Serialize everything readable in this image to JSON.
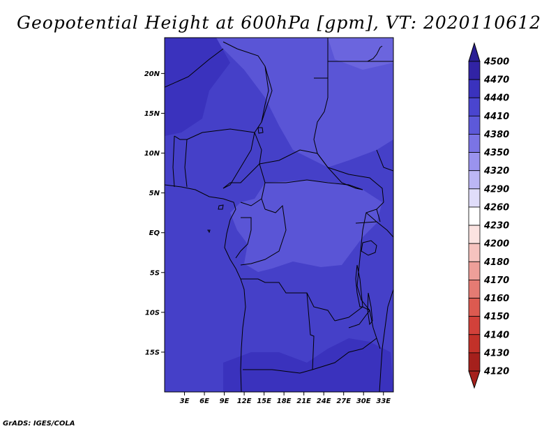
{
  "title": "Geopotential Height at 600hPa [gpm], VT: 2020110612",
  "footer": "GrADS: IGES/COLA",
  "map": {
    "lon_range": [
      0,
      34.5
    ],
    "lat_range": [
      -20,
      24.5
    ],
    "lat_ticks": [
      {
        "value": 20,
        "label": "20N"
      },
      {
        "value": 15,
        "label": "15N"
      },
      {
        "value": 10,
        "label": "10N"
      },
      {
        "value": 5,
        "label": "5N"
      },
      {
        "value": 0,
        "label": "EQ"
      },
      {
        "value": -5,
        "label": "5S"
      },
      {
        "value": -10,
        "label": "10S"
      },
      {
        "value": -15,
        "label": "15S"
      }
    ],
    "lon_ticks": [
      {
        "value": 3,
        "label": "3E"
      },
      {
        "value": 6,
        "label": "6E"
      },
      {
        "value": 9,
        "label": "9E"
      },
      {
        "value": 12,
        "label": "12E"
      },
      {
        "value": 15,
        "label": "15E"
      },
      {
        "value": 18,
        "label": "18E"
      },
      {
        "value": 21,
        "label": "21E"
      },
      {
        "value": 24,
        "label": "24E"
      },
      {
        "value": 27,
        "label": "27E"
      },
      {
        "value": 30,
        "label": "30E"
      },
      {
        "value": 33,
        "label": "33E"
      }
    ]
  },
  "colorbar": {
    "levels": [
      {
        "label": "4500",
        "color": "#2a1f94"
      },
      {
        "label": "4470",
        "color": "#3123a5"
      },
      {
        "label": "4440",
        "color": "#3a32bd"
      },
      {
        "label": "4410",
        "color": "#4a45cf"
      },
      {
        "label": "4380",
        "color": "#5d59d9"
      },
      {
        "label": "4350",
        "color": "#7b74e5"
      },
      {
        "label": "4320",
        "color": "#9a93ee"
      },
      {
        "label": "4290",
        "color": "#bcb6f5"
      },
      {
        "label": "4260",
        "color": "#e0ddfa"
      },
      {
        "label": "4230",
        "color": "#ffffff"
      },
      {
        "label": "4200",
        "color": "#fbe3e1"
      },
      {
        "label": "4180",
        "color": "#f6c3bf"
      },
      {
        "label": "4170",
        "color": "#ee9f99"
      },
      {
        "label": "4160",
        "color": "#e57b73"
      },
      {
        "label": "4150",
        "color": "#dc5a50"
      },
      {
        "label": "4140",
        "color": "#d2413a"
      },
      {
        "label": "4130",
        "color": "#c23129"
      },
      {
        "label": "4120",
        "color": "#a5201c"
      }
    ]
  },
  "field_colors": {
    "base": "#4540c8",
    "dark": "#3a32bd",
    "light": "#5a55d6",
    "lighter": "#6b65de"
  }
}
